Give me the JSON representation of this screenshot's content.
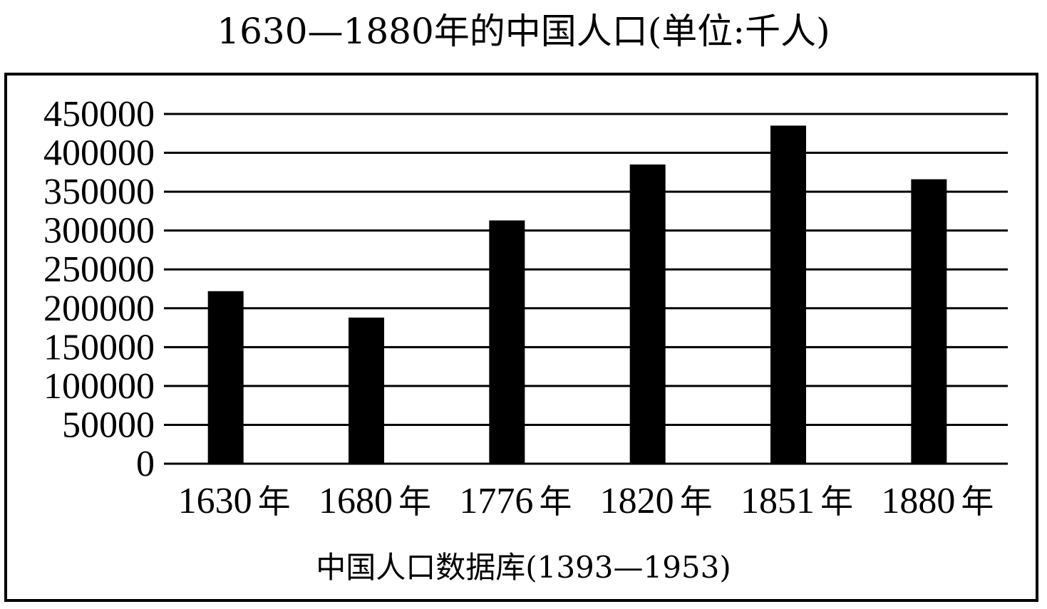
{
  "chart_data": {
    "type": "bar",
    "title": "1630—1880年的中国人口(单位:千人)",
    "source": "中国人口数据库(1393—1953)",
    "categories": [
      "1630年",
      "1680年",
      "1776年",
      "1820年",
      "1851年",
      "1880年"
    ],
    "values": [
      222000,
      188000,
      313000,
      385000,
      435000,
      366000
    ],
    "ylim": [
      0,
      450000
    ],
    "yticks": [
      0,
      50000,
      100000,
      150000,
      200000,
      250000,
      300000,
      350000,
      400000,
      450000
    ],
    "grid": true,
    "bar_color": "#000000",
    "xlabel": "",
    "ylabel": ""
  }
}
